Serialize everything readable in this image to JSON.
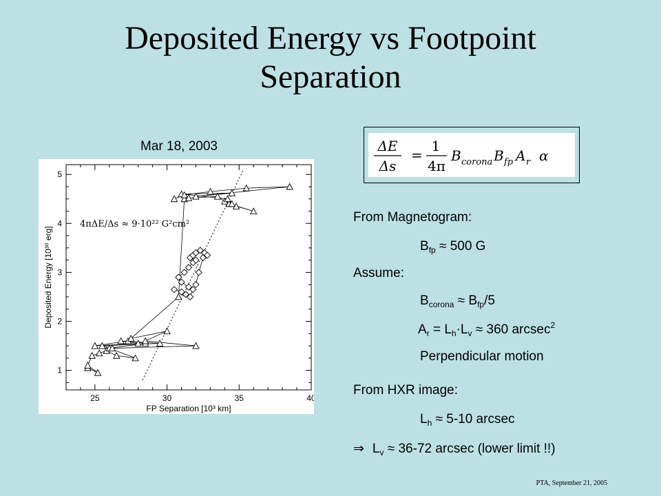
{
  "slide": {
    "title_line1": "Deposited Energy vs Footpoint",
    "title_line2": "Separation",
    "date": "Mar 18, 2003",
    "footer": "PTA, September 21, 2005"
  },
  "formula": {
    "lhs_num": "ΔE",
    "lhs_den": "Δs",
    "eq": "=",
    "coef_num": "1",
    "coef_den": "4π",
    "rhs": "B",
    "rhs_sub1": "corona",
    "rhs_b2": "B",
    "rhs_sub2": "fp",
    "rhs_a": "A",
    "rhs_sub3": "r",
    "rhs_alpha": "α"
  },
  "notes": {
    "from_magnetogram": "From Magnetogram:",
    "bfp_b": "B",
    "bfp_sub": "fp",
    "bfp_val": " ≈ 500 G",
    "assume": "Assume:",
    "bcor_b": "B",
    "bcor_sub": "corona",
    "bcor_mid": " ≈ B",
    "bcor_sub2": "fp",
    "bcor_end": "/5",
    "ar_a": "A",
    "ar_sub": "r",
    "ar_mid1": " = L",
    "ar_sub2": "h",
    "ar_mid2": "·L",
    "ar_sub3": "v",
    "ar_val": " ≈ 360 arcsec",
    "ar_sup": "2",
    "perp": "Perpendicular  motion",
    "from_hxr": "From HXR image:",
    "lh_l": "L",
    "lh_sub": "h",
    "lh_val": " ≈ 5-10 arcsec",
    "lv_arrow": "⇒",
    "lv_l": "L",
    "lv_sub": "v",
    "lv_val": " ≈ 36-72 arcsec  (lower limit !!)"
  },
  "chart_data": {
    "type": "scatter",
    "xlabel": "FP Separation  [10³  km]",
    "ylabel": "Deposited Energy  [10³⁰  erg]",
    "xlim": [
      23,
      40
    ],
    "ylim": [
      0.6,
      5.2
    ],
    "xticks": [
      25,
      30,
      35,
      40
    ],
    "yticks": [
      1,
      2,
      3,
      4,
      5
    ],
    "annotation": "4πΔE/Δs ≈ 9·10²² G²cm²",
    "fit_line": {
      "x": [
        28.3,
        35.3
      ],
      "y": [
        0.8,
        5.1
      ]
    },
    "series": [
      {
        "marker": "triangle",
        "x": [
          24.5,
          25.2,
          24.5,
          24.8,
          25.3,
          25.8,
          26.5,
          27.8,
          26.0,
          28.5,
          27.3,
          25.0,
          28.0,
          26.8,
          29.5,
          25.5,
          26.2,
          32.0,
          28.5,
          30.0,
          27.5,
          30.8,
          31.2,
          31.5,
          33.5,
          34.0,
          34.3,
          36.0,
          34.8,
          34.5,
          34.2,
          31.0,
          34.5,
          32.0,
          38.5,
          35.5,
          33.0,
          31.2,
          30.5
        ],
        "y": [
          1.05,
          0.95,
          1.1,
          1.3,
          1.35,
          1.4,
          1.3,
          1.25,
          1.45,
          1.55,
          1.6,
          1.5,
          1.55,
          1.6,
          1.55,
          1.5,
          1.45,
          1.5,
          1.6,
          1.8,
          1.65,
          2.5,
          4.5,
          4.52,
          4.55,
          4.45,
          4.4,
          4.25,
          4.35,
          4.4,
          4.5,
          4.6,
          4.62,
          4.55,
          4.75,
          4.72,
          4.65,
          4.58,
          4.5
        ]
      },
      {
        "marker": "diamond",
        "x": [
          30.5,
          31.0,
          31.3,
          31.6,
          31.8,
          31.5,
          31.0,
          30.8,
          31.2,
          31.5,
          31.8,
          32.0,
          31.6,
          31.8,
          32.0,
          32.3,
          32.6,
          32.8,
          32.5,
          32.2,
          32.0
        ],
        "y": [
          2.65,
          2.6,
          2.55,
          2.5,
          2.65,
          2.7,
          2.8,
          2.9,
          3.0,
          3.1,
          3.2,
          3.25,
          3.3,
          3.35,
          3.4,
          3.45,
          3.4,
          3.35,
          3.3,
          3.0,
          2.75
        ]
      }
    ]
  }
}
